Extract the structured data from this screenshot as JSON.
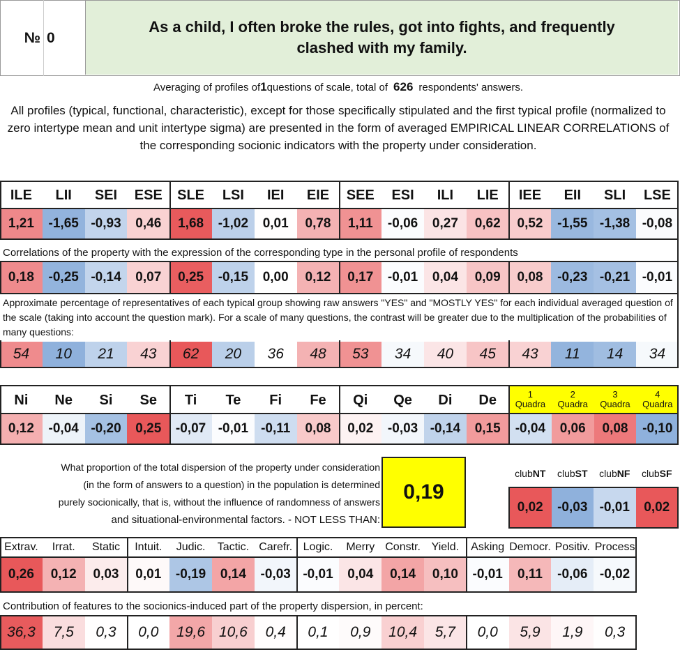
{
  "header": {
    "number_label": "№",
    "number_value": "0",
    "question": "As a child, I often broke the rules, got into fights, and frequently clashed with my family."
  },
  "summary": {
    "prefix": "Averaging of profiles of ",
    "question_count": "1",
    "middle": " questions of scale, total of ",
    "respondents": "626",
    "suffix": " respondents' answers."
  },
  "description": "All profiles (typical, functional, characteristic), except for those specifically stipulated and the first typical profile (normalized to zero intertype mean and unit intertype sigma) are presented in the form of averaged EMPIRICAL LINEAR CORRELATIONS of the corresponding socionic indicators with the property under consideration.",
  "colors": {
    "red": "#e8585a",
    "blue": "#8fb1dc",
    "yellow": "#ffff00",
    "header_green": "#e2efd9"
  },
  "types": {
    "labels": [
      "ILE",
      "LII",
      "SEI",
      "ESE",
      "SLE",
      "LSI",
      "IEI",
      "EIE",
      "SEE",
      "ESI",
      "ILI",
      "LIE",
      "IEE",
      "EII",
      "SLI",
      "LSE"
    ],
    "profile": [
      "1,21",
      "-1,65",
      "-0,93",
      "0,46",
      "1,68",
      "-1,02",
      "0,01",
      "0,78",
      "1,11",
      "-0,06",
      "0,27",
      "0,62",
      "0,52",
      "-1,55",
      "-1,38",
      "-0,08"
    ],
    "correlation_note": "Correlations of the property with the expression of the corresponding type in the personal profile of respondents",
    "correlations": [
      "0,18",
      "-0,25",
      "-0,14",
      "0,07",
      "0,25",
      "-0,15",
      "0,00",
      "0,12",
      "0,17",
      "-0,01",
      "0,04",
      "0,09",
      "0,08",
      "-0,23",
      "-0,21",
      "-0,01"
    ],
    "percent_note": "Approximate percentage of representatives of each typical group showing raw answers \"YES\" and \"MOSTLY YES\" for each individual averaged question of the scale (taking into account the question mark). For a scale of many questions, the contrast will be greater due to the multiplication of the probabilities of many questions:",
    "percentages": [
      "54",
      "10",
      "21",
      "43",
      "62",
      "20",
      "36",
      "48",
      "53",
      "34",
      "40",
      "45",
      "43",
      "11",
      "14",
      "34"
    ]
  },
  "functions": {
    "labels": [
      "Ni",
      "Ne",
      "Si",
      "Se",
      "Ti",
      "Te",
      "Fi",
      "Fe",
      "Qi",
      "Qe",
      "Di",
      "De"
    ],
    "values": [
      "0,12",
      "-0,04",
      "-0,20",
      "0,25",
      "-0,07",
      "-0,01",
      "-0,11",
      "0,08",
      "0,02",
      "-0,03",
      "-0,14",
      "0,15"
    ]
  },
  "quadras": {
    "numbers": [
      "1",
      "2",
      "3",
      "4"
    ],
    "label": "Quadra",
    "values": [
      "-0,04",
      "0,06",
      "0,08",
      "-0,10"
    ]
  },
  "dispersion": {
    "note_lines": [
      "What proportion of the total dispersion of the property under consideration",
      "(in the form of answers to a question) in the population is determined",
      "purely socionically, that is, without the influence of randomness of answers",
      "and situational-environmental factors. - NOT LESS THAN:"
    ],
    "value": "0,19"
  },
  "clubs": {
    "prefix": "club",
    "names": [
      "NT",
      "ST",
      "NF",
      "SF"
    ],
    "values": [
      "0,02",
      "-0,03",
      "-0,01",
      "0,02"
    ]
  },
  "features": {
    "labels": [
      "Extrav.",
      "Irrat.",
      "Static",
      "Intuit.",
      "Judic.",
      "Tactic.",
      "Carefr.",
      "Logic.",
      "Merry",
      "Constr.",
      "Yield.",
      "Asking",
      "Democr.",
      "Positiv.",
      "Process"
    ],
    "values": [
      "0,26",
      "0,12",
      "0,03",
      "0,01",
      "-0,19",
      "0,14",
      "-0,03",
      "-0,01",
      "0,04",
      "0,14",
      "0,10",
      "-0,01",
      "0,11",
      "-0,06",
      "-0,02"
    ],
    "contribution_note": "Contribution of features to the sociоnics-induced part of the property dispersion, in percent:",
    "contributions": [
      "36,3",
      "7,5",
      "0,3",
      "0,0",
      "19,6",
      "10,6",
      "0,4",
      "0,1",
      "0,9",
      "10,4",
      "5,7",
      "0,0",
      "5,9",
      "1,9",
      "0,3"
    ]
  }
}
